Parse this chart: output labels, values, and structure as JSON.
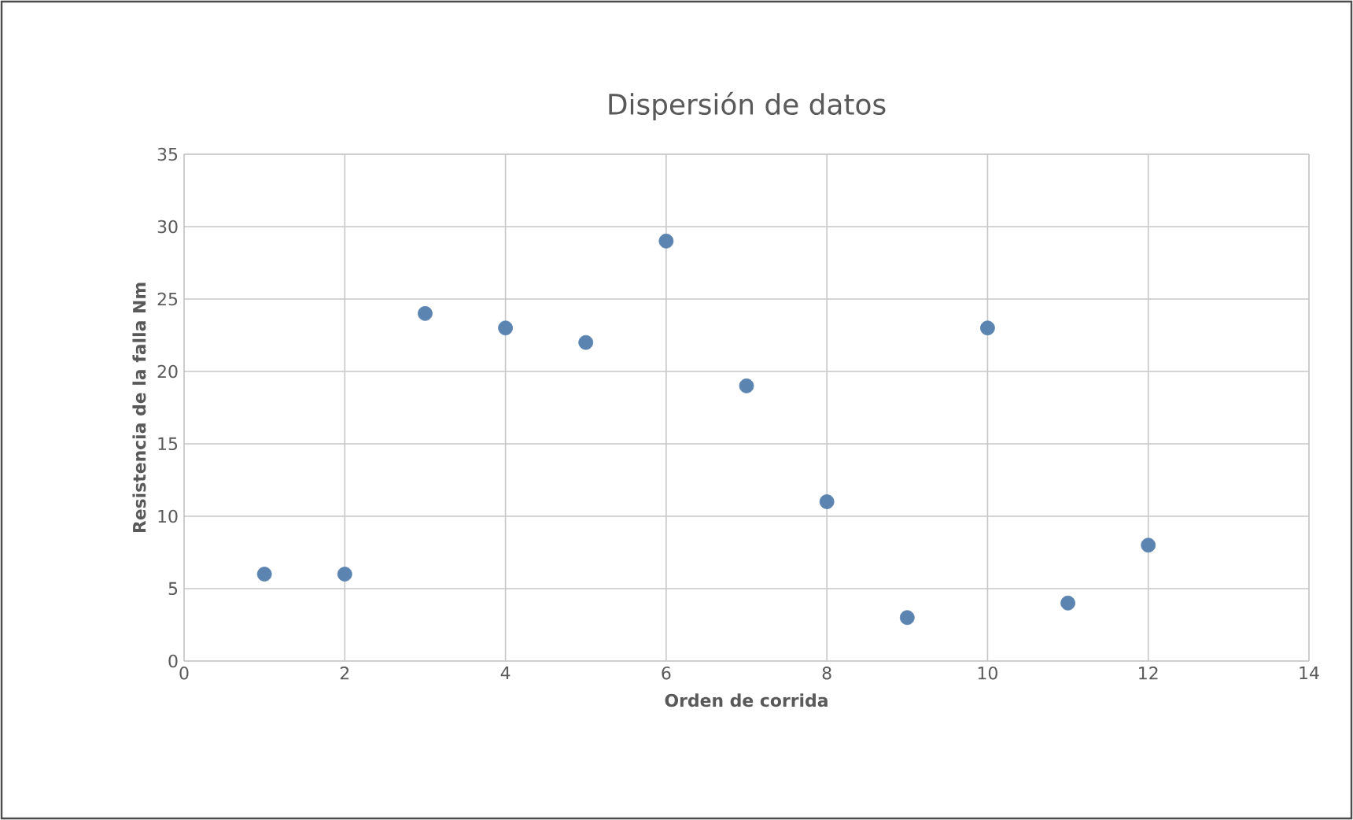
{
  "chart_data": {
    "type": "scatter",
    "title": "Dispersión de datos",
    "xlabel": "Orden de corrida",
    "ylabel": "Resistencia de la falla Nm",
    "x": [
      1,
      2,
      3,
      4,
      5,
      6,
      7,
      8,
      9,
      10,
      11,
      12
    ],
    "values": [
      6,
      6,
      24,
      23,
      22,
      29,
      19,
      11,
      3,
      23,
      4,
      8
    ],
    "color": "#5b84b1",
    "marker": "circle",
    "xlim": [
      0,
      14
    ],
    "xticks": [
      0,
      2,
      4,
      6,
      8,
      10,
      12,
      14
    ],
    "ylim": [
      0,
      35
    ],
    "yticks": [
      0,
      5,
      10,
      15,
      20,
      25,
      30,
      35
    ],
    "grid": true
  }
}
